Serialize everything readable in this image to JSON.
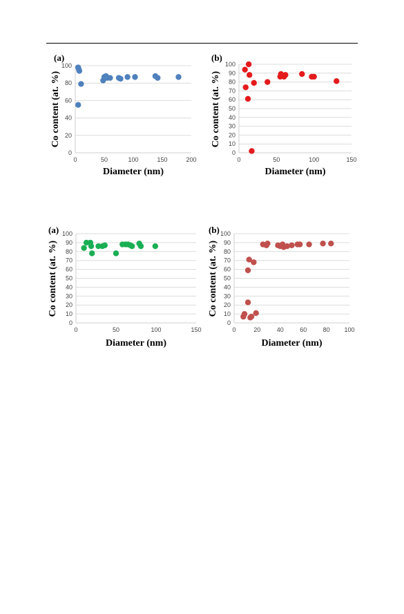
{
  "chart_data": [
    {
      "type": "scatter",
      "panel_label": "(a)",
      "xlabel": "Diameter (nm)",
      "ylabel": "Co content (at. %)",
      "xlim": [
        0,
        200
      ],
      "ylim": [
        0,
        100
      ],
      "xticks": [
        0,
        50,
        100,
        150,
        200
      ],
      "yticks": [
        0,
        20,
        40,
        60,
        80,
        100
      ],
      "grid": true,
      "color": "#4F81BD",
      "points": [
        [
          5,
          55
        ],
        [
          5,
          98
        ],
        [
          6,
          96
        ],
        [
          7,
          94
        ],
        [
          10,
          79
        ],
        [
          48,
          83
        ],
        [
          50,
          87
        ],
        [
          53,
          88
        ],
        [
          55,
          86
        ],
        [
          60,
          86
        ],
        [
          75,
          86
        ],
        [
          78,
          85
        ],
        [
          90,
          87
        ],
        [
          103,
          87
        ],
        [
          138,
          88
        ],
        [
          142,
          86
        ],
        [
          178,
          87
        ]
      ]
    },
    {
      "type": "scatter",
      "panel_label": "(b)",
      "xlabel": "Diameter (nm)",
      "ylabel": "Co content (at. %)",
      "xlim": [
        0,
        150
      ],
      "ylim": [
        0,
        100
      ],
      "xticks": [
        0,
        50,
        100,
        150
      ],
      "yticks": [
        0,
        10,
        20,
        30,
        40,
        50,
        60,
        70,
        80,
        90,
        100
      ],
      "grid": true,
      "color": "#E41A1C",
      "points": [
        [
          8,
          94
        ],
        [
          9,
          74
        ],
        [
          12,
          61
        ],
        [
          13,
          100
        ],
        [
          14,
          88
        ],
        [
          17,
          2
        ],
        [
          20,
          79
        ],
        [
          38,
          80
        ],
        [
          55,
          86
        ],
        [
          56,
          89
        ],
        [
          60,
          86
        ],
        [
          62,
          88
        ],
        [
          84,
          89
        ],
        [
          97,
          86
        ],
        [
          100,
          86
        ],
        [
          130,
          81
        ]
      ]
    },
    {
      "type": "scatter",
      "panel_label": "(a)",
      "xlabel": "Diameter (nm)",
      "ylabel": "Co content (at. %)",
      "xlim": [
        0,
        150
      ],
      "ylim": [
        0,
        100
      ],
      "xticks": [
        0,
        50,
        100,
        150
      ],
      "yticks": [
        0,
        10,
        20,
        30,
        40,
        50,
        60,
        70,
        80,
        90,
        100
      ],
      "grid": true,
      "color": "#1AAF54",
      "points": [
        [
          10,
          84
        ],
        [
          13,
          90
        ],
        [
          18,
          90
        ],
        [
          19,
          86
        ],
        [
          20,
          78
        ],
        [
          28,
          86
        ],
        [
          33,
          86
        ],
        [
          36,
          87
        ],
        [
          50,
          78
        ],
        [
          58,
          88
        ],
        [
          62,
          88
        ],
        [
          65,
          88
        ],
        [
          68,
          87
        ],
        [
          70,
          86
        ],
        [
          79,
          89
        ],
        [
          81,
          86
        ],
        [
          99,
          86
        ]
      ]
    },
    {
      "type": "scatter",
      "panel_label": "(b)",
      "xlabel": "Diameter (nm)",
      "ylabel": "Co content (at. %)",
      "xlim": [
        0,
        100
      ],
      "ylim": [
        0,
        100
      ],
      "xticks": [
        0,
        20,
        40,
        60,
        80,
        100
      ],
      "yticks": [
        0,
        10,
        20,
        30,
        40,
        50,
        60,
        70,
        80,
        90,
        100
      ],
      "grid": true,
      "color": "#C0504D",
      "points": [
        [
          8,
          7
        ],
        [
          9,
          10
        ],
        [
          12,
          59
        ],
        [
          12,
          23
        ],
        [
          13,
          71
        ],
        [
          14,
          6
        ],
        [
          15,
          7
        ],
        [
          17,
          68
        ],
        [
          19,
          11
        ],
        [
          25,
          88
        ],
        [
          28,
          87
        ],
        [
          29,
          89
        ],
        [
          38,
          87
        ],
        [
          40,
          86
        ],
        [
          42,
          88
        ],
        [
          43,
          85
        ],
        [
          46,
          86
        ],
        [
          50,
          87
        ],
        [
          55,
          88
        ],
        [
          57,
          88
        ],
        [
          65,
          88
        ],
        [
          77,
          89
        ],
        [
          84,
          89
        ]
      ]
    }
  ]
}
